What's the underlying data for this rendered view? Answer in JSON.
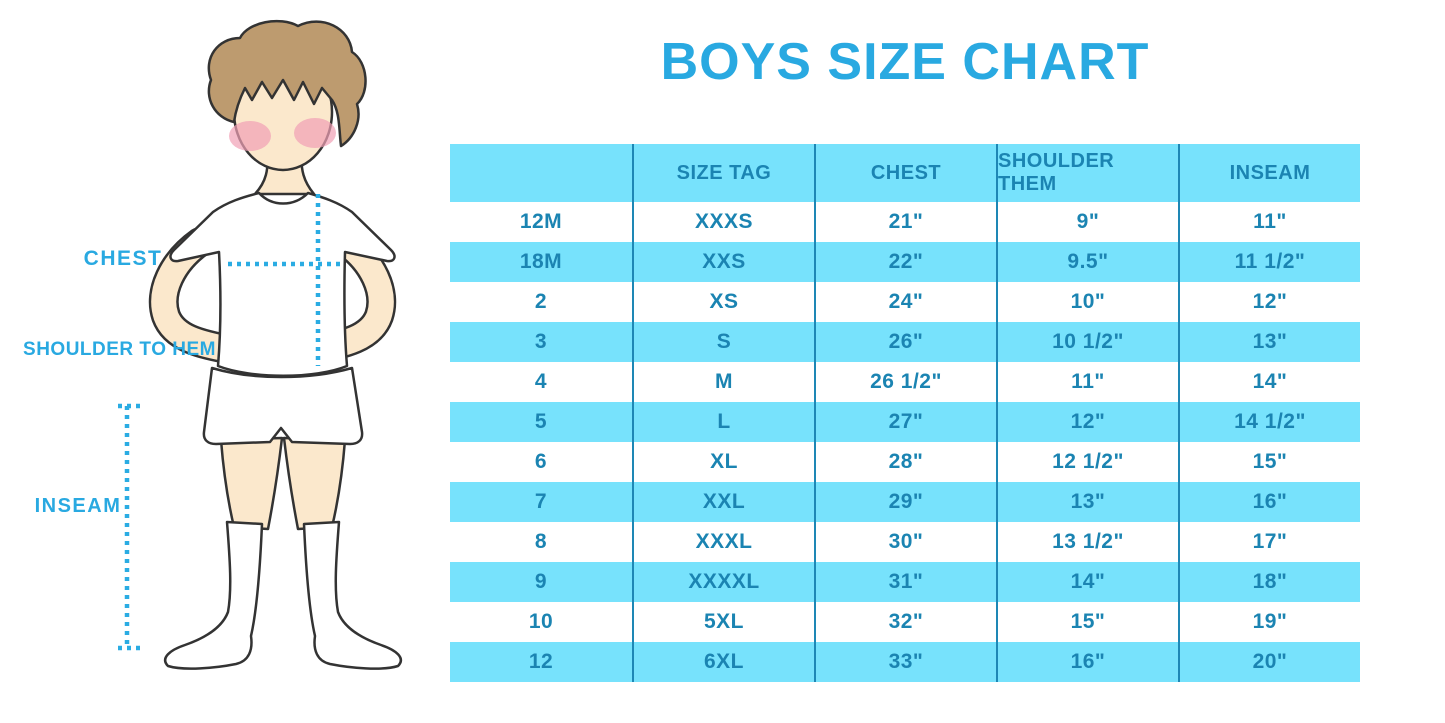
{
  "title": "BOYS SIZE CHART",
  "figure": {
    "labels": {
      "chest": "CHEST",
      "shoulder_to_hem": "SHOULDER TO HEM",
      "inseam": "INSEAM"
    }
  },
  "colors": {
    "accent": "#29A9E1",
    "row-blue": "#77E2FC",
    "table-text": "#1B84B2",
    "divider": "#1E87B5",
    "dot-line": "#2AACE3",
    "hair": "#BD9B6F",
    "skin": "#FBE8CC",
    "cheek": "#F19FB5",
    "outline": "#333333"
  },
  "chart_data": {
    "type": "table",
    "title": "BOYS SIZE CHART",
    "columns": [
      "",
      "SIZE TAG",
      "CHEST",
      "SHOULDER THEM",
      "INSEAM"
    ],
    "rows": [
      [
        "12M",
        "XXXS",
        "21\"",
        "9\"",
        "11\""
      ],
      [
        "18M",
        "XXS",
        "22\"",
        "9.5\"",
        "11 1/2\""
      ],
      [
        "2",
        "XS",
        "24\"",
        "10\"",
        "12\""
      ],
      [
        "3",
        "S",
        "26\"",
        "10 1/2\"",
        "13\""
      ],
      [
        "4",
        "M",
        "26 1/2\"",
        "11\"",
        "14\""
      ],
      [
        "5",
        "L",
        "27\"",
        "12\"",
        "14 1/2\""
      ],
      [
        "6",
        "XL",
        "28\"",
        "12 1/2\"",
        "15\""
      ],
      [
        "7",
        "XXL",
        "29\"",
        "13\"",
        "16\""
      ],
      [
        "8",
        "XXXL",
        "30\"",
        "13 1/2\"",
        "17\""
      ],
      [
        "9",
        "XXXXL",
        "31\"",
        "14\"",
        "18\""
      ],
      [
        "10",
        "5XL",
        "32\"",
        "15\"",
        "19\""
      ],
      [
        "12",
        "6XL",
        "33\"",
        "16\"",
        "20\""
      ]
    ]
  }
}
